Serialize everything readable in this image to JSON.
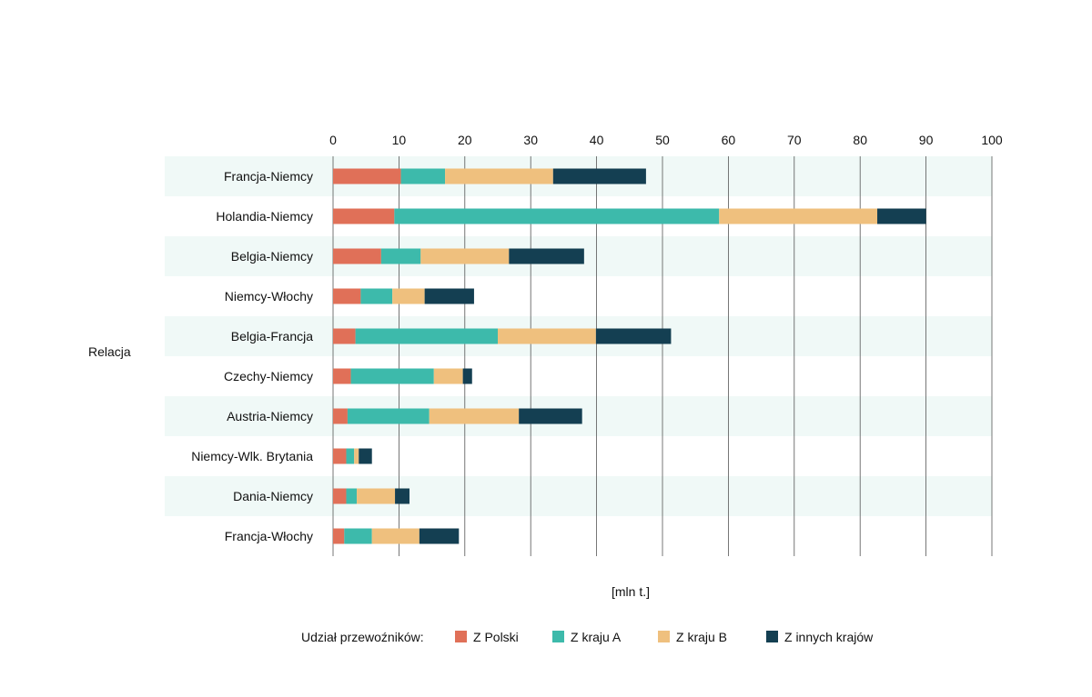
{
  "chart_data": {
    "type": "bar",
    "orientation": "horizontal",
    "stacked": true,
    "y_axis_title": "Relacja",
    "x_unit_label": "[mln t.]",
    "xlim": [
      0,
      100
    ],
    "x_ticks": [
      0,
      10,
      20,
      30,
      40,
      50,
      60,
      70,
      80,
      90,
      100
    ],
    "x_axis_position": "top",
    "grid": true,
    "legend_title": "Udział przewoźników:",
    "legend_position": "bottom",
    "categories": [
      "Francja-Niemcy",
      "Holandia-Niemcy",
      "Belgia-Niemcy",
      "Niemcy-Włochy",
      "Belgia-Francja",
      "Czechy-Niemcy",
      "Austria-Niemcy",
      "Niemcy-Wlk. Brytania",
      "Dania-Niemcy",
      "Francja-Włochy"
    ],
    "series": [
      {
        "name": "Z Polski",
        "color": "#e07058",
        "values": [
          10.3,
          9.3,
          7.3,
          4.2,
          3.4,
          2.7,
          2.2,
          2.0,
          2.0,
          1.7
        ]
      },
      {
        "name": "Z kraju A",
        "color": "#3dbaab",
        "values": [
          6.7,
          49.3,
          6.0,
          4.8,
          21.6,
          12.6,
          12.4,
          1.2,
          1.6,
          4.2
        ]
      },
      {
        "name": "Z kraju B",
        "color": "#efc07e",
        "values": [
          16.4,
          24.0,
          13.4,
          4.9,
          14.9,
          4.4,
          13.6,
          0.7,
          5.8,
          7.2
        ]
      },
      {
        "name": "Z innych krajów",
        "color": "#143f52",
        "values": [
          14.1,
          7.4,
          11.4,
          7.5,
          11.4,
          1.4,
          9.6,
          2.0,
          2.2,
          6.0
        ]
      }
    ],
    "band_color": "#f0f9f7"
  }
}
